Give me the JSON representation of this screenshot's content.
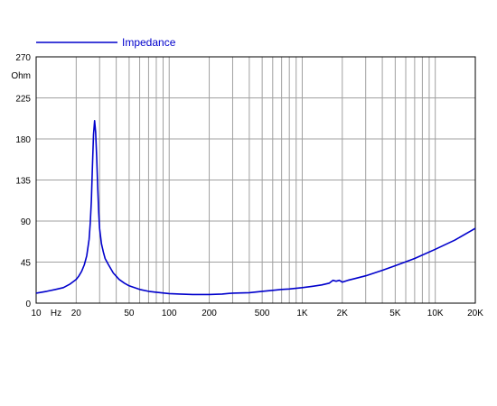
{
  "chart_data": {
    "type": "line",
    "x_scale": "log",
    "xlim": [
      10,
      20000
    ],
    "ylim": [
      0,
      270
    ],
    "grid": true,
    "legend_position": "top-left",
    "y_unit": "Ohm",
    "x_unit": "Hz",
    "y_ticks": [
      {
        "value": 0,
        "label": "0"
      },
      {
        "value": 45,
        "label": "45"
      },
      {
        "value": 90,
        "label": "90"
      },
      {
        "value": 135,
        "label": "135"
      },
      {
        "value": 180,
        "label": "180"
      },
      {
        "value": 225,
        "label": "225"
      },
      {
        "value": 270,
        "label": "270"
      }
    ],
    "x_ticks": [
      {
        "value": 10,
        "label": "10"
      },
      {
        "value": 20,
        "label": "20"
      },
      {
        "value": 50,
        "label": "50"
      },
      {
        "value": 100,
        "label": "100"
      },
      {
        "value": 200,
        "label": "200"
      },
      {
        "value": 500,
        "label": "500"
      },
      {
        "value": 1000,
        "label": "1K"
      },
      {
        "value": 2000,
        "label": "2K"
      },
      {
        "value": 5000,
        "label": "5K"
      },
      {
        "value": 10000,
        "label": "10K"
      },
      {
        "value": 20000,
        "label": "20K"
      }
    ],
    "x_gridlines": [
      10,
      20,
      30,
      40,
      50,
      60,
      70,
      80,
      90,
      100,
      200,
      300,
      400,
      500,
      600,
      700,
      800,
      900,
      1000,
      2000,
      3000,
      4000,
      5000,
      6000,
      7000,
      8000,
      9000,
      10000,
      20000
    ],
    "series": [
      {
        "name": "Impedance",
        "color": "#0000cc",
        "x": [
          10,
          12,
          14,
          16,
          18,
          20,
          21,
          22,
          23,
          24,
          25,
          25.5,
          26,
          26.5,
          27,
          27.5,
          28,
          28.5,
          29,
          29.5,
          30,
          31,
          32,
          33,
          35,
          38,
          42,
          46,
          50,
          60,
          70,
          80,
          100,
          120,
          150,
          200,
          250,
          300,
          400,
          500,
          600,
          700,
          800,
          1000,
          1200,
          1400,
          1600,
          1700,
          1800,
          1900,
          2000,
          2200,
          2500,
          3000,
          4000,
          5000,
          7000,
          10000,
          14000,
          20000
        ],
        "y": [
          11,
          13,
          15,
          17,
          21,
          26,
          30,
          35,
          42,
          52,
          70,
          88,
          112,
          150,
          185,
          200,
          188,
          160,
          128,
          100,
          82,
          65,
          56,
          49,
          42,
          33,
          26,
          22,
          19,
          15,
          13,
          12,
          10.5,
          10,
          9.5,
          9.5,
          10,
          11,
          11.5,
          13,
          14,
          15,
          15.5,
          17,
          18.5,
          20,
          22,
          25,
          24,
          25,
          23,
          25,
          27,
          30,
          36,
          41,
          49,
          59,
          69,
          82
        ]
      }
    ]
  }
}
